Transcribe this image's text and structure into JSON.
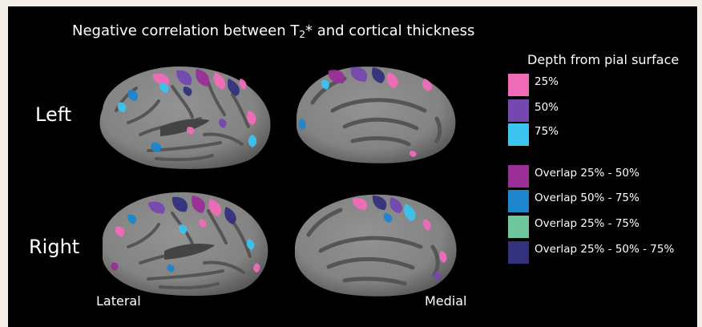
{
  "title_main": "Negative correlation between T",
  "title_sub": "2",
  "title_rest": "* and cortical thickness",
  "row_labels": {
    "left": "Left",
    "right": "Right"
  },
  "view_labels": {
    "lateral": "Lateral",
    "medial": "Medial"
  },
  "legend": {
    "title": "Depth from pial surface",
    "items": [
      {
        "label": "25%",
        "color": "#f06cb8"
      },
      {
        "label": "50%",
        "color": "#7548b0"
      },
      {
        "label": "75%",
        "color": "#3cc4ee"
      },
      {
        "label": "Overlap 25% - 50%",
        "color": "#9a2f98"
      },
      {
        "label": "Overlap 50% - 75%",
        "color": "#1e86cc"
      },
      {
        "label": "Overlap 25% - 75%",
        "color": "#6fc69c"
      },
      {
        "label": "Overlap 25% - 50% - 75%",
        "color": "#33317c"
      }
    ]
  },
  "colors": {
    "background": "#000000",
    "cortex_light": "#8a8a8a",
    "cortex_dark": "#565656"
  }
}
